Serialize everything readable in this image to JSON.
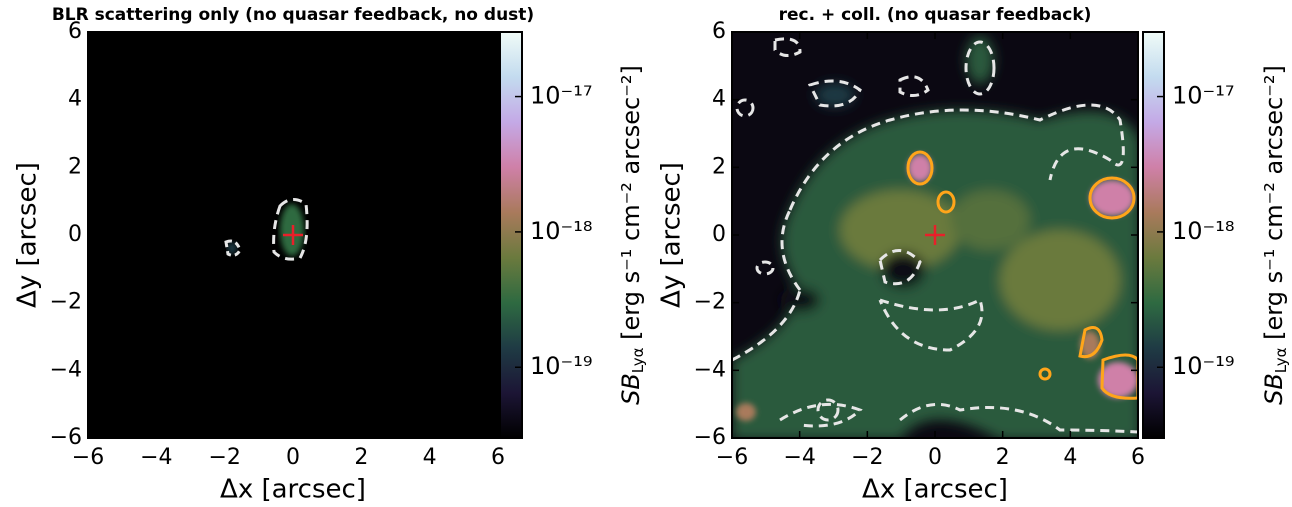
{
  "chart_data": [
    {
      "type": "heatmap",
      "title": "BLR scattering only (no quasar feedback, no dust)",
      "xlabel": "Δx [arcsec]",
      "ylabel": "Δy [arcsec]",
      "xlim": [
        -6,
        6
      ],
      "ylim": [
        -6,
        6
      ],
      "xticks": [
        {
          "value": -6,
          "label": "−6"
        },
        {
          "value": -4,
          "label": "−4"
        },
        {
          "value": -2,
          "label": "−2"
        },
        0,
        2,
        4,
        6
      ],
      "yticks": [
        {
          "value": -6,
          "label": "−6"
        },
        {
          "value": -4,
          "label": "−4"
        },
        {
          "value": -2,
          "label": "−2"
        },
        0,
        2,
        4,
        6
      ],
      "marker": {
        "x": 0,
        "y": 0,
        "color": "#e8202a"
      },
      "colorbar": {
        "label_main": "SB",
        "label_sub": "Lyα",
        "label_unit": " [erg s⁻¹ cm⁻² arcsec⁻²]",
        "log": true,
        "clim": [
          3e-20,
          3e-17
        ],
        "ticks": [
          {
            "value": 1e-19,
            "label": "10⁻¹⁹"
          },
          {
            "value": 1e-18,
            "label": "10⁻¹⁸"
          },
          {
            "value": 1e-17,
            "label": "10⁻¹⁷"
          }
        ],
        "colors": [
          "#000000",
          "#1c1535",
          "#1f3b44",
          "#2e6a41",
          "#6b7a3e",
          "#a97a5c",
          "#cf80a8",
          "#c4a9e6",
          "#c3dbef",
          "#f0fbf7"
        ]
      }
    },
    {
      "type": "heatmap",
      "title": "rec. + coll. (no quasar feedback)",
      "xlabel": "Δx [arcsec]",
      "ylabel": "Δy [arcsec]",
      "xlim": [
        -6,
        6
      ],
      "ylim": [
        -6,
        6
      ],
      "xticks": [
        {
          "value": -6,
          "label": "−6"
        },
        {
          "value": -4,
          "label": "−4"
        },
        {
          "value": -2,
          "label": "−2"
        },
        0,
        2,
        4,
        6
      ],
      "yticks": [
        {
          "value": -6,
          "label": "−6"
        },
        {
          "value": -4,
          "label": "−4"
        },
        {
          "value": -2,
          "label": "−2"
        },
        0,
        2,
        4,
        6
      ],
      "marker": {
        "x": 0,
        "y": 0,
        "color": "#e8202a"
      },
      "colorbar": {
        "label_main": "SB",
        "label_sub": "Lyα",
        "label_unit": " [erg s⁻¹ cm⁻² arcsec⁻²]",
        "log": true,
        "clim": [
          3e-20,
          3e-17
        ],
        "ticks": [
          {
            "value": 1e-19,
            "label": "10⁻¹⁹"
          },
          {
            "value": 1e-18,
            "label": "10⁻¹⁸"
          },
          {
            "value": 1e-17,
            "label": "10⁻¹⁷"
          }
        ],
        "colors": [
          "#000000",
          "#1c1535",
          "#1f3b44",
          "#2e6a41",
          "#6b7a3e",
          "#a97a5c",
          "#cf80a8",
          "#c4a9e6",
          "#c3dbef",
          "#f0fbf7"
        ]
      }
    }
  ]
}
